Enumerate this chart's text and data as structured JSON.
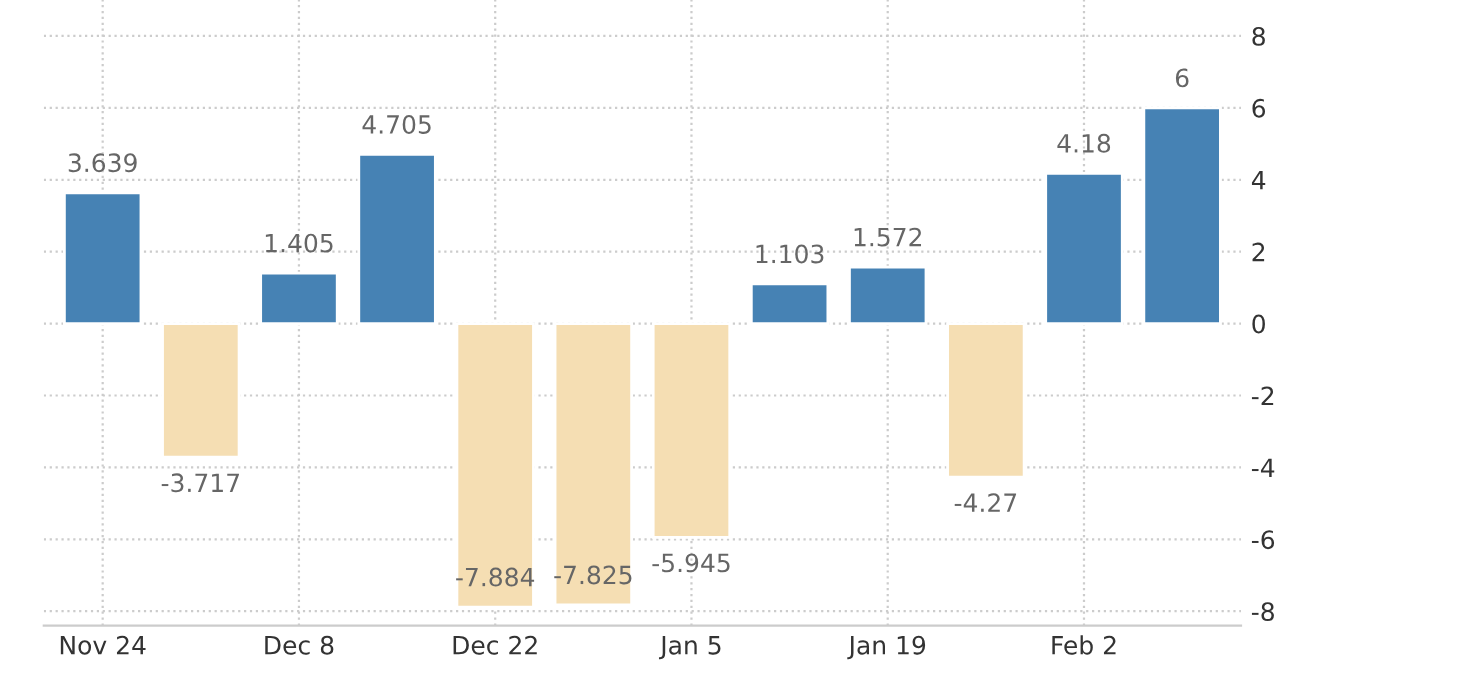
{
  "chart_data": {
    "type": "bar",
    "categories": [
      "Nov 24",
      null,
      "Dec 8",
      null,
      "Dec 22",
      null,
      "Jan 5",
      null,
      "Jan 19",
      null,
      "Feb 2",
      null
    ],
    "values": [
      3.639,
      -3.717,
      1.405,
      4.705,
      -7.884,
      -7.825,
      -5.945,
      1.103,
      1.572,
      -4.27,
      4.18,
      6
    ],
    "colors": [
      "#4682b4",
      "#f5deb3",
      "#4682b4",
      "#4682b4",
      "#f5deb3",
      "#f5deb3",
      "#f5deb3",
      "#4682b4",
      "#4682b4",
      "#f5deb3",
      "#4682b4",
      "#4682b4"
    ],
    "ylim": [
      -8.4,
      9
    ],
    "yticks": [
      -8,
      -6,
      -4,
      -2,
      0,
      2,
      4,
      6,
      8
    ],
    "grid": true,
    "data_labels": true
  }
}
